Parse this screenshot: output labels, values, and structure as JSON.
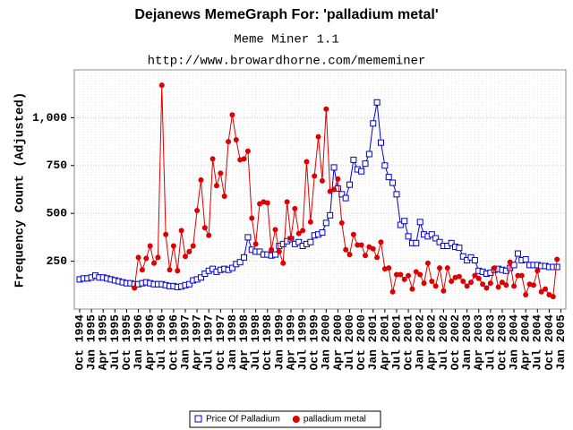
{
  "chart_data": {
    "type": "line",
    "title": "Dejanews MemeGraph For: 'palladium metal'",
    "subtitle": "Meme Miner 1.1",
    "url": "http://www.browardhorne.com/mememiner",
    "y_label": "Frequency Count (Adjusted)",
    "categories": [
      "Oct 1994",
      null,
      null,
      "Jan 1995",
      null,
      null,
      "Apr 1995",
      null,
      null,
      "Jul 1995",
      null,
      null,
      "Oct 1995",
      null,
      null,
      "Jan 1996",
      null,
      null,
      "Apr 1996",
      null,
      null,
      "Jul 1996",
      null,
      null,
      "Oct 1996",
      null,
      null,
      "Jan 1997",
      null,
      null,
      "Apr 1997",
      null,
      null,
      "Jul 1997",
      null,
      null,
      "Oct 1997",
      null,
      null,
      "Jan 1998",
      null,
      null,
      "Apr 1998",
      null,
      null,
      "Jul 1998",
      null,
      null,
      "Oct 1998",
      null,
      null,
      "Jan 1999",
      null,
      null,
      "Apr 1999",
      null,
      null,
      "Jul 1999",
      null,
      null,
      "Oct 1999",
      null,
      null,
      "Jan 2000",
      null,
      null,
      "Apr 2000",
      null,
      null,
      "Jul 2000",
      null,
      null,
      "Oct 2000",
      null,
      null,
      "Jan 2001",
      null,
      null,
      "Apr 2001",
      null,
      null,
      "Jul 2001",
      null,
      null,
      "Oct 2001",
      null,
      null,
      "Jan 2002",
      null,
      null,
      "Apr 2002",
      null,
      null,
      "Jul 2002",
      null,
      null,
      "Oct 2002",
      null,
      null,
      "Jan 2003",
      null,
      null,
      "Apr 2003",
      null,
      null,
      "Jul 2003",
      null,
      null,
      "Oct 2003",
      null,
      null,
      "Jan 2004",
      null,
      null,
      "Apr 2004",
      null,
      null,
      "Jul 2004",
      null,
      null,
      "Oct 2004",
      null,
      null,
      "Jan 2005"
    ],
    "series": [
      {
        "name": "Price Of Palladium",
        "color": "#0000cc",
        "marker": "square",
        "values": [
          155,
          160,
          160,
          165,
          175,
          165,
          165,
          160,
          155,
          150,
          145,
          140,
          135,
          135,
          130,
          130,
          135,
          140,
          135,
          130,
          130,
          130,
          125,
          120,
          120,
          115,
          118,
          125,
          130,
          150,
          155,
          165,
          185,
          200,
          210,
          195,
          205,
          210,
          205,
          215,
          235,
          245,
          270,
          375,
          310,
          300,
          300,
          285,
          285,
          280,
          285,
          330,
          340,
          355,
          365,
          340,
          350,
          330,
          340,
          350,
          385,
          390,
          400,
          450,
          490,
          740,
          630,
          600,
          580,
          650,
          780,
          730,
          720,
          760,
          810,
          970,
          1080,
          870,
          750,
          690,
          660,
          600,
          440,
          460,
          380,
          345,
          345,
          455,
          390,
          380,
          390,
          370,
          350,
          330,
          330,
          345,
          325,
          320,
          275,
          255,
          270,
          255,
          200,
          195,
          185,
          190,
          205,
          210,
          205,
          200,
          215,
          230,
          290,
          255,
          260,
          230,
          230,
          230,
          225,
          225,
          220,
          220,
          220,
          null
        ]
      },
      {
        "name": "palladium metal",
        "color": "#dd0000",
        "marker": "circle",
        "values": [
          null,
          null,
          null,
          null,
          null,
          null,
          null,
          null,
          null,
          null,
          null,
          null,
          null,
          null,
          110,
          270,
          205,
          265,
          330,
          240,
          270,
          1170,
          390,
          205,
          330,
          200,
          410,
          275,
          300,
          330,
          515,
          675,
          425,
          385,
          785,
          645,
          710,
          590,
          875,
          1015,
          885,
          780,
          785,
          825,
          475,
          340,
          550,
          560,
          555,
          310,
          415,
          300,
          240,
          560,
          370,
          525,
          395,
          410,
          770,
          455,
          695,
          900,
          670,
          1045,
          615,
          625,
          680,
          450,
          310,
          285,
          390,
          335,
          335,
          280,
          325,
          315,
          270,
          350,
          210,
          215,
          90,
          180,
          180,
          155,
          175,
          105,
          195,
          180,
          135,
          240,
          145,
          120,
          215,
          95,
          215,
          145,
          165,
          170,
          145,
          120,
          140,
          175,
          160,
          130,
          110,
          135,
          215,
          115,
          140,
          125,
          245,
          120,
          175,
          175,
          75,
          130,
          125,
          200,
          90,
          105,
          75,
          65,
          260,
          null
        ]
      }
    ],
    "ylim": [
      0,
      1250
    ],
    "yticks": [
      250,
      500,
      750,
      {
        "value": 1000,
        "label": "1,000"
      }
    ],
    "grid": true,
    "legend": "bottom"
  }
}
